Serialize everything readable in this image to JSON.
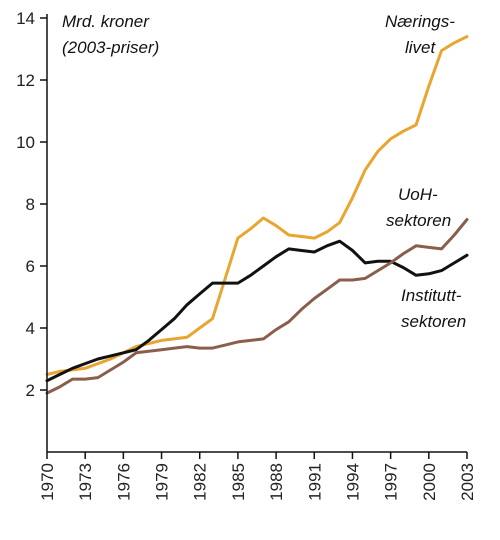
{
  "chart_data": {
    "type": "line",
    "title": "",
    "xlabel": "",
    "ylabel": "",
    "xlim": [
      1970,
      2003
    ],
    "ylim": [
      0,
      14
    ],
    "yticks": [
      2,
      4,
      6,
      8,
      10,
      12,
      14
    ],
    "xticks": [
      "1970",
      "1973",
      "1976",
      "1979",
      "1982",
      "1985",
      "1988",
      "1991",
      "1994",
      "1997",
      "2000",
      "2003"
    ],
    "grid": false,
    "annotations": {
      "units_line1": "Mrd. kroner",
      "units_line2": "(2003-priser)",
      "naering_line1": "Nærings-",
      "naering_line2": "livet",
      "uoh_line1": "UoH-",
      "uoh_line2": "sektoren",
      "institutt_line1": "Institutt-",
      "institutt_line2": "sektoren"
    },
    "series": [
      {
        "key": "naeringslivet",
        "color": "#E8A530",
        "points": [
          [
            1970,
            2.5
          ],
          [
            1971,
            2.6
          ],
          [
            1972,
            2.65
          ],
          [
            1973,
            2.7
          ],
          [
            1974,
            2.85
          ],
          [
            1975,
            3.0
          ],
          [
            1976,
            3.2
          ],
          [
            1977,
            3.4
          ],
          [
            1978,
            3.5
          ],
          [
            1979,
            3.6
          ],
          [
            1980,
            3.65
          ],
          [
            1981,
            3.7
          ],
          [
            1982,
            4.0
          ],
          [
            1983,
            4.3
          ],
          [
            1984,
            5.6
          ],
          [
            1985,
            6.9
          ],
          [
            1986,
            7.2
          ],
          [
            1987,
            7.55
          ],
          [
            1988,
            7.3
          ],
          [
            1989,
            7.0
          ],
          [
            1990,
            6.95
          ],
          [
            1991,
            6.9
          ],
          [
            1992,
            7.1
          ],
          [
            1993,
            7.4
          ],
          [
            1994,
            8.2
          ],
          [
            1995,
            9.1
          ],
          [
            1996,
            9.7
          ],
          [
            1997,
            10.1
          ],
          [
            1998,
            10.35
          ],
          [
            1999,
            10.55
          ],
          [
            2000,
            11.8
          ],
          [
            2001,
            12.95
          ],
          [
            2002,
            13.2
          ],
          [
            2003,
            13.4
          ]
        ]
      },
      {
        "key": "uoh",
        "color": "#111111",
        "points": [
          [
            1970,
            2.3
          ],
          [
            1971,
            2.5
          ],
          [
            1972,
            2.7
          ],
          [
            1973,
            2.85
          ],
          [
            1974,
            3.0
          ],
          [
            1975,
            3.1
          ],
          [
            1976,
            3.2
          ],
          [
            1977,
            3.3
          ],
          [
            1978,
            3.6
          ],
          [
            1979,
            3.95
          ],
          [
            1980,
            4.3
          ],
          [
            1981,
            4.75
          ],
          [
            1982,
            5.1
          ],
          [
            1983,
            5.45
          ],
          [
            1984,
            5.45
          ],
          [
            1985,
            5.45
          ],
          [
            1986,
            5.7
          ],
          [
            1987,
            6.0
          ],
          [
            1988,
            6.3
          ],
          [
            1989,
            6.55
          ],
          [
            1990,
            6.5
          ],
          [
            1991,
            6.45
          ],
          [
            1992,
            6.65
          ],
          [
            1993,
            6.8
          ],
          [
            1994,
            6.5
          ],
          [
            1995,
            6.1
          ],
          [
            1996,
            6.15
          ],
          [
            1997,
            6.15
          ],
          [
            1998,
            5.95
          ],
          [
            1999,
            5.7
          ],
          [
            2000,
            5.75
          ],
          [
            2001,
            5.85
          ],
          [
            2002,
            6.1
          ],
          [
            2003,
            6.35
          ]
        ]
      },
      {
        "key": "instituttsektoren",
        "color": "#8B5E4C",
        "points": [
          [
            1970,
            1.9
          ],
          [
            1971,
            2.1
          ],
          [
            1972,
            2.35
          ],
          [
            1973,
            2.35
          ],
          [
            1974,
            2.4
          ],
          [
            1975,
            2.65
          ],
          [
            1976,
            2.9
          ],
          [
            1977,
            3.2
          ],
          [
            1978,
            3.25
          ],
          [
            1979,
            3.3
          ],
          [
            1980,
            3.35
          ],
          [
            1981,
            3.4
          ],
          [
            1982,
            3.35
          ],
          [
            1983,
            3.35
          ],
          [
            1984,
            3.45
          ],
          [
            1985,
            3.55
          ],
          [
            1986,
            3.6
          ],
          [
            1987,
            3.65
          ],
          [
            1988,
            3.95
          ],
          [
            1989,
            4.2
          ],
          [
            1990,
            4.6
          ],
          [
            1991,
            4.95
          ],
          [
            1992,
            5.25
          ],
          [
            1993,
            5.55
          ],
          [
            1994,
            5.55
          ],
          [
            1995,
            5.6
          ],
          [
            1996,
            5.85
          ],
          [
            1997,
            6.1
          ],
          [
            1998,
            6.4
          ],
          [
            1999,
            6.65
          ],
          [
            2000,
            6.6
          ],
          [
            2001,
            6.55
          ],
          [
            2002,
            7.0
          ],
          [
            2003,
            7.5
          ]
        ]
      }
    ]
  }
}
